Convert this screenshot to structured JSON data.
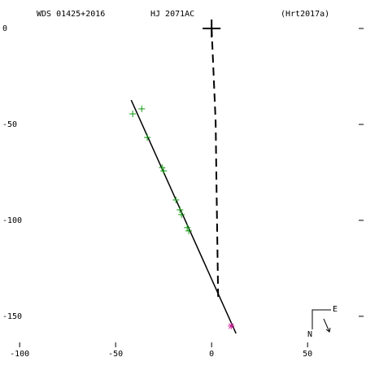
{
  "chart_data": {
    "type": "scatter",
    "title": "WDS 01425+2016",
    "subtitle": "HJ 2071AC",
    "reference": "(Hrt2017a)",
    "compass": {
      "east": "E",
      "north": "N"
    },
    "xlim": [
      -106,
      80
    ],
    "ylim": [
      -167,
      10.6
    ],
    "xticks": [
      -100,
      -50,
      0,
      50
    ],
    "yticks": [
      0,
      -50,
      -100,
      -150
    ],
    "series": [
      {
        "style": "dashed",
        "color": "#000000",
        "x": [
          0,
          2.1,
          2.5,
          3.4
        ],
        "values": [
          0,
          -48.7,
          -78.4,
          -139.8
        ]
      },
      {
        "style": "solid",
        "color": "#000000",
        "x": [
          -41.9,
          12.7
        ],
        "values": [
          -37.3,
          -158.9
        ]
      },
      {
        "style": "plus",
        "color": "#119911",
        "x": [
          -41.1,
          -36.4,
          -33.5,
          -25.8,
          -25.0,
          -18.6,
          -16.5,
          -15.7,
          -12.7,
          -11.9
        ],
        "values": [
          -44.5,
          -41.9,
          -56.8,
          -72.5,
          -74.2,
          -89.4,
          -94.5,
          -97.0,
          -103.8,
          -105.5
        ]
      },
      {
        "style": "star",
        "color": "#cc2299",
        "x": [
          10.2
        ],
        "values": [
          -155.1
        ]
      },
      {
        "style": "cross",
        "color": "#000000",
        "x": [
          0
        ],
        "values": [
          0
        ]
      }
    ]
  }
}
